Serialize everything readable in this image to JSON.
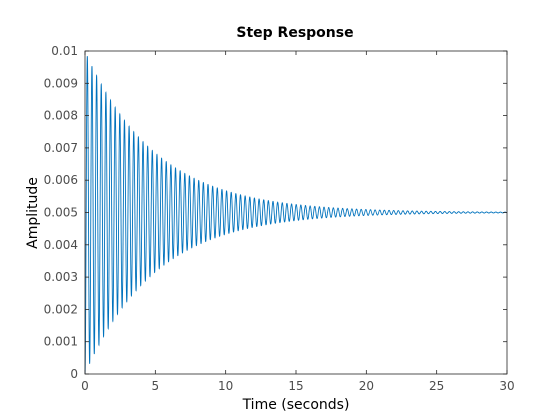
{
  "chart_data": {
    "type": "line",
    "title": "Step Response",
    "xlabel": "Time (seconds)",
    "ylabel": "Amplitude",
    "xlim": [
      0,
      30
    ],
    "ylim": [
      0,
      0.01
    ],
    "xticks": [
      0,
      5,
      10,
      15,
      20,
      25,
      30
    ],
    "xtick_labels": [
      "0",
      "5",
      "10",
      "15",
      "20",
      "25",
      "30"
    ],
    "yticks": [
      0,
      0.001,
      0.002,
      0.003,
      0.004,
      0.005,
      0.006,
      0.007,
      0.008,
      0.009,
      0.01
    ],
    "ytick_labels": [
      "0",
      "0.001",
      "0.002",
      "0.003",
      "0.004",
      "0.005",
      "0.006",
      "0.007",
      "0.008",
      "0.009",
      "0.01"
    ],
    "grid": false,
    "colors": {
      "series": "#0072BD",
      "axes": "#262626",
      "ticks": "#4d4d4d"
    },
    "series": [
      {
        "description": "underdamped oscillation settling to steady state",
        "steady_state": 0.005,
        "initial_peak": 0.01,
        "envelope_time_constant": 5,
        "oscillation_period": 0.33,
        "x": [
          0,
          1,
          2,
          3,
          4,
          5,
          6,
          7,
          8,
          9,
          10,
          12,
          15,
          18,
          20,
          25,
          30
        ],
        "y_upper_envelope": [
          0.01,
          0.0091,
          0.00835,
          0.00775,
          0.00725,
          0.00684,
          0.00651,
          0.00623,
          0.00601,
          0.00583,
          0.00568,
          0.00545,
          0.00525,
          0.00514,
          0.00509,
          0.00503,
          0.005
        ],
        "y_lower_envelope": [
          0.0,
          0.0009,
          0.00165,
          0.00225,
          0.00275,
          0.00316,
          0.00349,
          0.00377,
          0.00399,
          0.00417,
          0.00432,
          0.00455,
          0.00475,
          0.00486,
          0.00491,
          0.00497,
          0.005
        ]
      }
    ]
  }
}
